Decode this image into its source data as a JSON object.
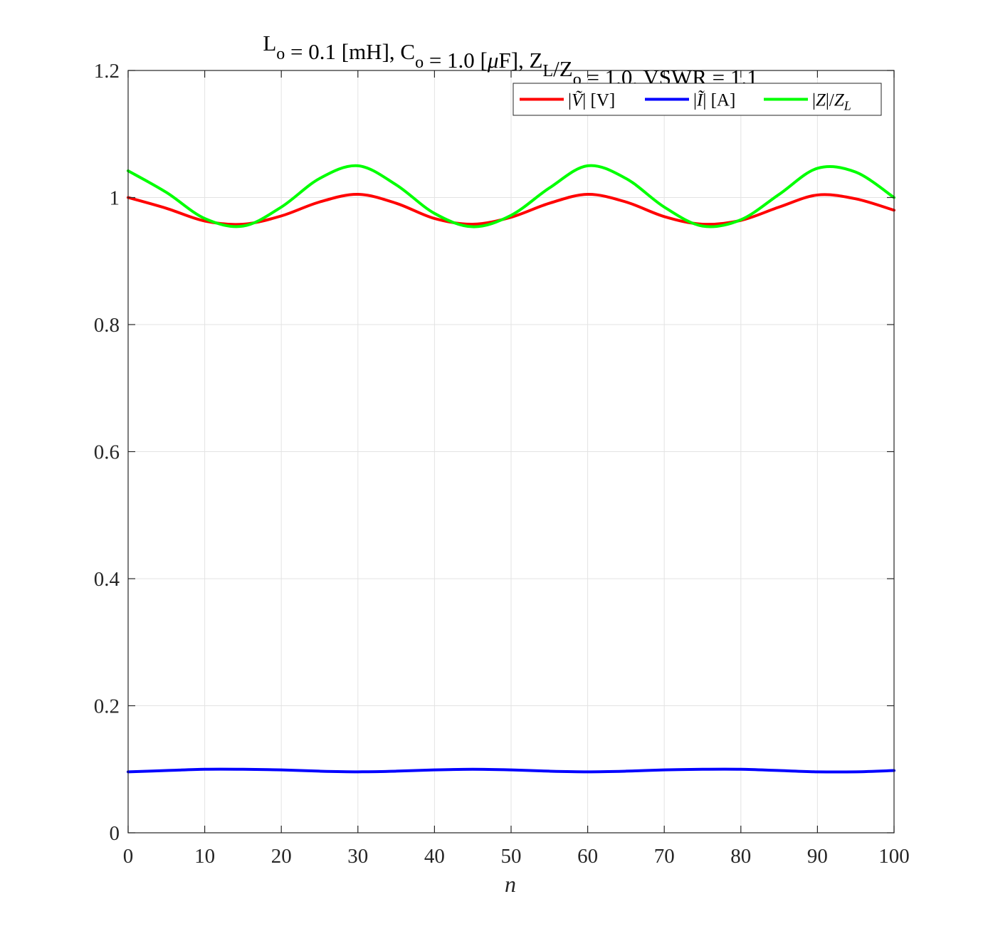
{
  "chart_data": {
    "type": "line",
    "title": {
      "parts": [
        {
          "text": "L",
          "sub": false
        },
        {
          "text": "o",
          "sub": true
        },
        {
          "text": " = 0.1 [mH], C",
          "sub": false
        },
        {
          "text": "o",
          "sub": true
        },
        {
          "text": " = 1.0 [",
          "sub": false
        },
        {
          "text": "μ",
          "sub": false,
          "italic": true
        },
        {
          "text": "F], Z",
          "sub": false
        },
        {
          "text": "L",
          "sub": true
        },
        {
          "text": "/Z",
          "sub": false
        },
        {
          "text": "o",
          "sub": true
        },
        {
          "text": " = 1.0, VSWR = 1.1",
          "sub": false
        }
      ]
    },
    "xlabel": "n",
    "ylabel": "",
    "xlim": [
      0,
      100
    ],
    "ylim": [
      0,
      1.2
    ],
    "xticks": [
      0,
      10,
      20,
      30,
      40,
      50,
      60,
      70,
      80,
      90,
      100
    ],
    "xtick_labels": [
      "0",
      "10",
      "20",
      "30",
      "40",
      "50",
      "60",
      "70",
      "80",
      "90",
      "100"
    ],
    "yticks": [
      0,
      0.2,
      0.4,
      0.6,
      0.8,
      1.0,
      1.2
    ],
    "ytick_labels": [
      "0",
      "0.2",
      "0.4",
      "0.6",
      "0.8",
      "1",
      "1.2"
    ],
    "grid": true,
    "legend_position": "top-right",
    "legend_orientation": "horizontal",
    "x": [
      0,
      5,
      10,
      15,
      20,
      25,
      30,
      35,
      40,
      45,
      50,
      55,
      60,
      65,
      70,
      75,
      80,
      85,
      90,
      95,
      100
    ],
    "series": [
      {
        "name": "|Ṽ| [V]",
        "legend_parts": [
          {
            "text": "|",
            "i": false
          },
          {
            "text": "Ṽ",
            "i": true
          },
          {
            "text": "| [V]",
            "i": false
          }
        ],
        "color": "#ff0000",
        "values": [
          1.0,
          0.983,
          0.963,
          0.958,
          0.971,
          0.993,
          1.005,
          0.991,
          0.967,
          0.958,
          0.969,
          0.991,
          1.005,
          0.993,
          0.97,
          0.958,
          0.964,
          0.985,
          1.004,
          0.998,
          0.98
        ]
      },
      {
        "name": "|Ĩ| [A]",
        "legend_parts": [
          {
            "text": "|",
            "i": false
          },
          {
            "text": "Ĩ",
            "i": true
          },
          {
            "text": "| [A]",
            "i": false
          }
        ],
        "color": "#0000ff",
        "values": [
          0.096,
          0.098,
          0.1,
          0.1,
          0.099,
          0.097,
          0.096,
          0.097,
          0.099,
          0.1,
          0.099,
          0.097,
          0.096,
          0.097,
          0.099,
          0.1,
          0.1,
          0.098,
          0.096,
          0.096,
          0.098
        ]
      },
      {
        "name": "|Z|/Z_L",
        "legend_parts": [
          {
            "text": "|",
            "i": false
          },
          {
            "text": "Z",
            "i": true
          },
          {
            "text": "|/",
            "i": false
          },
          {
            "text": "Z",
            "i": true
          },
          {
            "text": "L",
            "i": true,
            "sub": true
          }
        ],
        "color": "#00ff00",
        "values": [
          1.042,
          1.008,
          0.967,
          0.955,
          0.985,
          1.03,
          1.05,
          1.02,
          0.975,
          0.954,
          0.972,
          1.015,
          1.05,
          1.03,
          0.985,
          0.955,
          0.965,
          1.005,
          1.046,
          1.04,
          1.0
        ]
      }
    ]
  }
}
